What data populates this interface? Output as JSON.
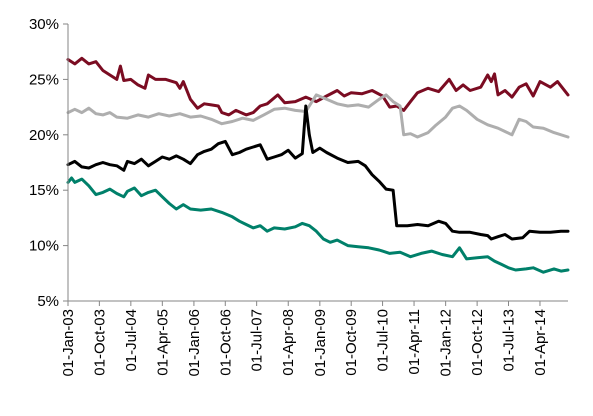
{
  "chart_data": {
    "type": "line",
    "title": "",
    "xlabel": "",
    "ylabel": "",
    "ylim": [
      5,
      30
    ],
    "y_ticks": [
      "5%",
      "10%",
      "15%",
      "20%",
      "25%",
      "30%"
    ],
    "y_tick_values": [
      5,
      10,
      15,
      20,
      25,
      30
    ],
    "x_range": [
      "2003-01-01",
      "2014-12-01"
    ],
    "x_tick_labels": [
      "01-Jan-03",
      "01-Oct-03",
      "01-Jul-04",
      "01-Apr-05",
      "01-Jan-06",
      "01-Oct-06",
      "01-Jul-07",
      "01-Apr-08",
      "01-Jan-09",
      "01-Oct-09",
      "01-Jul-10",
      "01-Apr-11",
      "01-Jan-12",
      "01-Oct-12",
      "01-Jul-13",
      "01-Apr-14"
    ],
    "x_tick_dates": [
      "2003-01-01",
      "2003-10-01",
      "2004-07-01",
      "2005-04-01",
      "2006-01-01",
      "2006-10-01",
      "2007-07-01",
      "2008-04-01",
      "2009-01-01",
      "2009-10-01",
      "2010-07-01",
      "2011-04-01",
      "2012-01-01",
      "2012-10-01",
      "2013-07-01",
      "2014-04-01"
    ],
    "grid": false,
    "legend": "none",
    "series": [
      {
        "color": "#7b0c22",
        "points": [
          [
            "2003-01-01",
            26.8
          ],
          [
            "2003-03-01",
            26.4
          ],
          [
            "2003-05-01",
            26.9
          ],
          [
            "2003-07-01",
            26.4
          ],
          [
            "2003-09-01",
            26.6
          ],
          [
            "2003-11-01",
            25.8
          ],
          [
            "2004-01-01",
            25.4
          ],
          [
            "2004-03-01",
            25.0
          ],
          [
            "2004-04-01",
            26.2
          ],
          [
            "2004-05-01",
            24.9
          ],
          [
            "2004-07-01",
            25.0
          ],
          [
            "2004-09-01",
            24.5
          ],
          [
            "2004-11-01",
            24.2
          ],
          [
            "2004-12-01",
            25.4
          ],
          [
            "2005-02-01",
            25.0
          ],
          [
            "2005-05-01",
            25.0
          ],
          [
            "2005-08-01",
            24.7
          ],
          [
            "2005-09-01",
            24.2
          ],
          [
            "2005-10-01",
            24.8
          ],
          [
            "2005-12-01",
            23.2
          ],
          [
            "2006-02-01",
            22.4
          ],
          [
            "2006-04-01",
            22.8
          ],
          [
            "2006-06-01",
            22.7
          ],
          [
            "2006-08-01",
            22.6
          ],
          [
            "2006-09-01",
            22.0
          ],
          [
            "2006-11-01",
            21.8
          ],
          [
            "2007-01-01",
            22.2
          ],
          [
            "2007-04-01",
            21.8
          ],
          [
            "2007-06-01",
            22.0
          ],
          [
            "2007-08-01",
            22.6
          ],
          [
            "2007-10-01",
            22.8
          ],
          [
            "2008-01-01",
            23.6
          ],
          [
            "2008-03-01",
            22.9
          ],
          [
            "2008-06-01",
            23.0
          ],
          [
            "2008-09-01",
            23.4
          ],
          [
            "2008-12-01",
            23.0
          ],
          [
            "2009-03-01",
            23.5
          ],
          [
            "2009-06-01",
            24.0
          ],
          [
            "2009-08-01",
            23.5
          ],
          [
            "2009-10-01",
            23.8
          ],
          [
            "2010-01-01",
            23.7
          ],
          [
            "2010-04-01",
            24.0
          ],
          [
            "2010-07-01",
            23.5
          ],
          [
            "2010-09-01",
            22.5
          ],
          [
            "2010-11-01",
            22.6
          ],
          [
            "2011-01-01",
            22.2
          ],
          [
            "2011-03-01",
            23.0
          ],
          [
            "2011-05-01",
            23.8
          ],
          [
            "2011-08-01",
            24.2
          ],
          [
            "2011-11-01",
            23.9
          ],
          [
            "2012-02-01",
            25.0
          ],
          [
            "2012-04-01",
            24.0
          ],
          [
            "2012-06-01",
            24.5
          ],
          [
            "2012-08-01",
            24.0
          ],
          [
            "2012-11-01",
            24.3
          ],
          [
            "2013-01-01",
            25.4
          ],
          [
            "2013-02-01",
            24.8
          ],
          [
            "2013-03-01",
            25.5
          ],
          [
            "2013-04-01",
            23.6
          ],
          [
            "2013-06-01",
            24.0
          ],
          [
            "2013-08-01",
            23.4
          ],
          [
            "2013-10-01",
            24.3
          ],
          [
            "2013-12-01",
            24.6
          ],
          [
            "2014-02-01",
            23.5
          ],
          [
            "2014-04-01",
            24.8
          ],
          [
            "2014-07-01",
            24.3
          ],
          [
            "2014-09-01",
            24.8
          ],
          [
            "2014-12-01",
            23.6
          ]
        ]
      },
      {
        "color": "#aeaeae",
        "points": [
          [
            "2003-01-01",
            22.0
          ],
          [
            "2003-03-01",
            22.3
          ],
          [
            "2003-05-01",
            22.0
          ],
          [
            "2003-07-01",
            22.4
          ],
          [
            "2003-09-01",
            21.9
          ],
          [
            "2003-11-01",
            21.8
          ],
          [
            "2004-01-01",
            22.0
          ],
          [
            "2004-03-01",
            21.6
          ],
          [
            "2004-06-01",
            21.5
          ],
          [
            "2004-09-01",
            21.8
          ],
          [
            "2004-12-01",
            21.6
          ],
          [
            "2005-03-01",
            21.9
          ],
          [
            "2005-06-01",
            21.7
          ],
          [
            "2005-09-01",
            21.9
          ],
          [
            "2005-12-01",
            21.6
          ],
          [
            "2006-03-01",
            21.7
          ],
          [
            "2006-06-01",
            21.4
          ],
          [
            "2006-09-01",
            21.0
          ],
          [
            "2006-12-01",
            21.2
          ],
          [
            "2007-03-01",
            21.5
          ],
          [
            "2007-06-01",
            21.3
          ],
          [
            "2007-09-01",
            21.8
          ],
          [
            "2007-12-01",
            22.3
          ],
          [
            "2008-03-01",
            22.4
          ],
          [
            "2008-06-01",
            22.2
          ],
          [
            "2008-09-01",
            22.1
          ],
          [
            "2008-12-01",
            23.6
          ],
          [
            "2009-03-01",
            23.2
          ],
          [
            "2009-06-01",
            22.8
          ],
          [
            "2009-09-01",
            22.6
          ],
          [
            "2009-12-01",
            22.7
          ],
          [
            "2010-03-01",
            22.5
          ],
          [
            "2010-06-01",
            23.2
          ],
          [
            "2010-08-01",
            23.6
          ],
          [
            "2010-10-01",
            23.0
          ],
          [
            "2010-12-01",
            22.6
          ],
          [
            "2011-01-01",
            20.0
          ],
          [
            "2011-03-01",
            20.1
          ],
          [
            "2011-05-01",
            19.8
          ],
          [
            "2011-08-01",
            20.2
          ],
          [
            "2011-10-01",
            20.8
          ],
          [
            "2012-01-01",
            21.6
          ],
          [
            "2012-03-01",
            22.4
          ],
          [
            "2012-05-01",
            22.6
          ],
          [
            "2012-07-01",
            22.2
          ],
          [
            "2012-10-01",
            21.4
          ],
          [
            "2013-01-01",
            20.9
          ],
          [
            "2013-04-01",
            20.6
          ],
          [
            "2013-06-01",
            20.3
          ],
          [
            "2013-08-01",
            20.0
          ],
          [
            "2013-10-01",
            21.4
          ],
          [
            "2013-12-01",
            21.2
          ],
          [
            "2014-02-01",
            20.7
          ],
          [
            "2014-05-01",
            20.6
          ],
          [
            "2014-08-01",
            20.2
          ],
          [
            "2014-12-01",
            19.8
          ]
        ]
      },
      {
        "color": "#000000",
        "points": [
          [
            "2003-01-01",
            17.3
          ],
          [
            "2003-03-01",
            17.6
          ],
          [
            "2003-05-01",
            17.1
          ],
          [
            "2003-07-01",
            17.0
          ],
          [
            "2003-09-01",
            17.3
          ],
          [
            "2003-11-01",
            17.5
          ],
          [
            "2004-01-01",
            17.3
          ],
          [
            "2004-03-01",
            17.2
          ],
          [
            "2004-05-01",
            16.8
          ],
          [
            "2004-06-01",
            17.6
          ],
          [
            "2004-08-01",
            17.4
          ],
          [
            "2004-10-01",
            17.8
          ],
          [
            "2004-12-01",
            17.2
          ],
          [
            "2005-02-01",
            17.6
          ],
          [
            "2005-04-01",
            18.0
          ],
          [
            "2005-06-01",
            17.8
          ],
          [
            "2005-08-01",
            18.1
          ],
          [
            "2005-10-01",
            17.8
          ],
          [
            "2005-12-01",
            17.4
          ],
          [
            "2006-02-01",
            18.2
          ],
          [
            "2006-04-01",
            18.5
          ],
          [
            "2006-06-01",
            18.7
          ],
          [
            "2006-08-01",
            19.2
          ],
          [
            "2006-10-01",
            19.4
          ],
          [
            "2006-12-01",
            18.2
          ],
          [
            "2007-02-01",
            18.4
          ],
          [
            "2007-04-01",
            18.7
          ],
          [
            "2007-06-01",
            18.9
          ],
          [
            "2007-08-01",
            19.1
          ],
          [
            "2007-10-01",
            17.8
          ],
          [
            "2007-12-01",
            18.0
          ],
          [
            "2008-02-01",
            18.2
          ],
          [
            "2008-04-01",
            18.6
          ],
          [
            "2008-06-01",
            17.9
          ],
          [
            "2008-08-01",
            18.3
          ],
          [
            "2008-09-01",
            22.6
          ],
          [
            "2008-10-01",
            20.0
          ],
          [
            "2008-11-01",
            18.4
          ],
          [
            "2009-01-01",
            18.8
          ],
          [
            "2009-03-01",
            18.4
          ],
          [
            "2009-06-01",
            17.9
          ],
          [
            "2009-09-01",
            17.5
          ],
          [
            "2009-12-01",
            17.6
          ],
          [
            "2010-02-01",
            17.2
          ],
          [
            "2010-04-01",
            16.4
          ],
          [
            "2010-06-01",
            15.8
          ],
          [
            "2010-08-01",
            15.1
          ],
          [
            "2010-10-01",
            15.0
          ],
          [
            "2010-11-01",
            11.8
          ],
          [
            "2011-02-01",
            11.8
          ],
          [
            "2011-05-01",
            11.9
          ],
          [
            "2011-08-01",
            11.8
          ],
          [
            "2011-11-01",
            12.2
          ],
          [
            "2012-01-01",
            12.0
          ],
          [
            "2012-03-01",
            11.3
          ],
          [
            "2012-05-01",
            11.2
          ],
          [
            "2012-08-01",
            11.2
          ],
          [
            "2012-11-01",
            11.0
          ],
          [
            "2013-01-01",
            10.9
          ],
          [
            "2013-02-01",
            10.6
          ],
          [
            "2013-04-01",
            10.8
          ],
          [
            "2013-06-01",
            11.0
          ],
          [
            "2013-08-01",
            10.6
          ],
          [
            "2013-11-01",
            10.7
          ],
          [
            "2014-01-01",
            11.3
          ],
          [
            "2014-04-01",
            11.2
          ],
          [
            "2014-07-01",
            11.2
          ],
          [
            "2014-10-01",
            11.3
          ],
          [
            "2014-12-01",
            11.3
          ]
        ]
      },
      {
        "color": "#00806a",
        "points": [
          [
            "2003-01-01",
            15.7
          ],
          [
            "2003-02-01",
            16.1
          ],
          [
            "2003-03-01",
            15.7
          ],
          [
            "2003-05-01",
            16.0
          ],
          [
            "2003-07-01",
            15.4
          ],
          [
            "2003-09-01",
            14.6
          ],
          [
            "2003-11-01",
            14.8
          ],
          [
            "2004-01-01",
            15.1
          ],
          [
            "2004-03-01",
            14.7
          ],
          [
            "2004-05-01",
            14.4
          ],
          [
            "2004-06-01",
            14.9
          ],
          [
            "2004-08-01",
            15.2
          ],
          [
            "2004-10-01",
            14.5
          ],
          [
            "2004-12-01",
            14.8
          ],
          [
            "2005-02-01",
            15.0
          ],
          [
            "2005-04-01",
            14.4
          ],
          [
            "2005-06-01",
            13.8
          ],
          [
            "2005-08-01",
            13.3
          ],
          [
            "2005-10-01",
            13.7
          ],
          [
            "2005-12-01",
            13.3
          ],
          [
            "2006-03-01",
            13.2
          ],
          [
            "2006-06-01",
            13.3
          ],
          [
            "2006-09-01",
            13.0
          ],
          [
            "2006-12-01",
            12.6
          ],
          [
            "2007-02-01",
            12.2
          ],
          [
            "2007-04-01",
            11.9
          ],
          [
            "2007-06-01",
            11.6
          ],
          [
            "2007-08-01",
            11.8
          ],
          [
            "2007-10-01",
            11.3
          ],
          [
            "2007-12-01",
            11.6
          ],
          [
            "2008-03-01",
            11.5
          ],
          [
            "2008-06-01",
            11.7
          ],
          [
            "2008-08-01",
            12.0
          ],
          [
            "2008-10-01",
            11.8
          ],
          [
            "2008-12-01",
            11.3
          ],
          [
            "2009-02-01",
            10.6
          ],
          [
            "2009-04-01",
            10.3
          ],
          [
            "2009-06-01",
            10.5
          ],
          [
            "2009-09-01",
            10.0
          ],
          [
            "2009-12-01",
            9.9
          ],
          [
            "2010-03-01",
            9.8
          ],
          [
            "2010-06-01",
            9.6
          ],
          [
            "2010-09-01",
            9.3
          ],
          [
            "2010-12-01",
            9.4
          ],
          [
            "2011-03-01",
            9.0
          ],
          [
            "2011-06-01",
            9.3
          ],
          [
            "2011-09-01",
            9.5
          ],
          [
            "2011-12-01",
            9.2
          ],
          [
            "2012-03-01",
            9.0
          ],
          [
            "2012-05-01",
            9.8
          ],
          [
            "2012-07-01",
            8.8
          ],
          [
            "2012-10-01",
            8.9
          ],
          [
            "2013-01-01",
            9.0
          ],
          [
            "2013-03-01",
            8.6
          ],
          [
            "2013-05-01",
            8.3
          ],
          [
            "2013-07-01",
            8.0
          ],
          [
            "2013-09-01",
            7.8
          ],
          [
            "2013-12-01",
            7.9
          ],
          [
            "2014-02-01",
            8.0
          ],
          [
            "2014-05-01",
            7.6
          ],
          [
            "2014-08-01",
            7.9
          ],
          [
            "2014-10-01",
            7.7
          ],
          [
            "2014-12-01",
            7.8
          ]
        ]
      }
    ]
  }
}
